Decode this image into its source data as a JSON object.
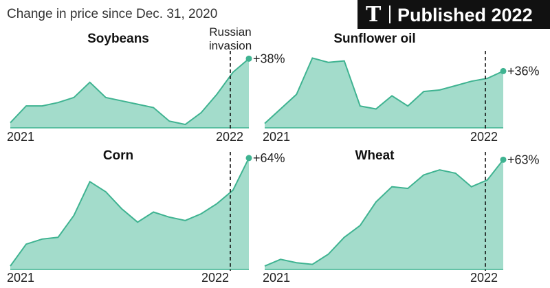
{
  "subtitle": "Change in price since Dec. 31, 2020",
  "badge": {
    "logo": "nyt-logo-icon",
    "label": "Published 2022"
  },
  "colors": {
    "fill": "#a3dccb",
    "stroke": "#3fb391",
    "dot": "#3fb391",
    "marker": "#111111"
  },
  "annotation": {
    "line1": "Russian",
    "line2": "invasion"
  },
  "chart_data": [
    {
      "type": "area",
      "title": "Soybeans",
      "end_label": "+38%",
      "x_tick_labels": [
        "2021",
        "2022"
      ],
      "values": [
        0,
        10,
        10,
        12,
        15,
        24,
        15,
        13,
        11,
        9,
        1,
        -1,
        6,
        17,
        30,
        38
      ],
      "ylim": [
        -3,
        41
      ]
    },
    {
      "type": "area",
      "title": "Sunflower oil",
      "end_label": "+36%",
      "x_tick_labels": [
        "2021",
        "2022"
      ],
      "values": [
        0,
        10,
        20,
        45,
        42,
        43,
        12,
        10,
        19,
        12,
        22,
        23,
        26,
        29,
        31,
        36
      ],
      "ylim": [
        -3,
        48
      ]
    },
    {
      "type": "area",
      "title": "Corn",
      "end_label": "+64%",
      "x_tick_labels": [
        "2021",
        "2022"
      ],
      "values": [
        0,
        13,
        16,
        17,
        30,
        50,
        44,
        34,
        26,
        32,
        29,
        27,
        31,
        37,
        45,
        64
      ],
      "ylim": [
        -2,
        66
      ]
    },
    {
      "type": "area",
      "title": "Wheat",
      "end_label": "+63%",
      "x_tick_labels": [
        "2021",
        "2022"
      ],
      "values": [
        0,
        4,
        2,
        1,
        7,
        17,
        24,
        38,
        47,
        46,
        54,
        57,
        55,
        47,
        51,
        63
      ],
      "ylim": [
        -2,
        66
      ]
    }
  ]
}
